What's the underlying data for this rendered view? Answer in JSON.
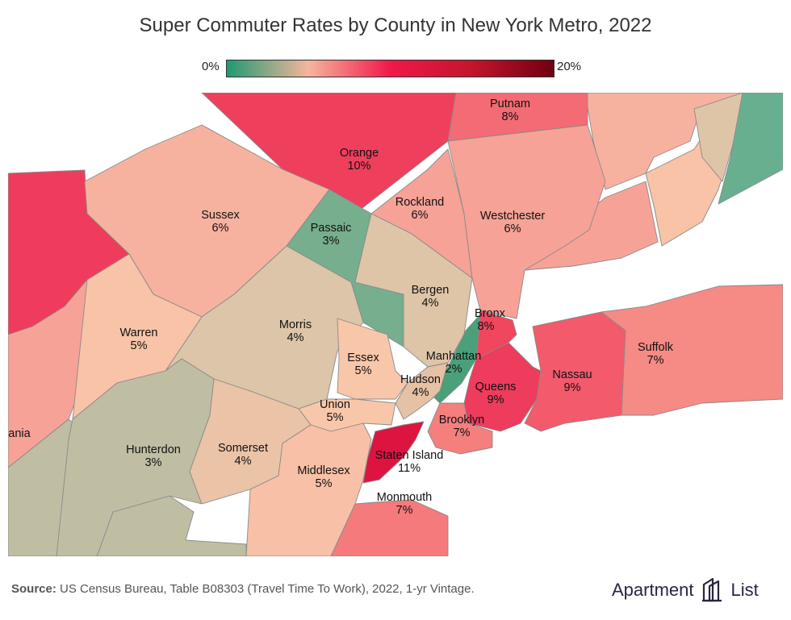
{
  "title": "Super Commuter Rates by County in New York Metro, 2022",
  "legend": {
    "min_label": "0%",
    "max_label": "20%",
    "colors": [
      "#1f9a70",
      "#f5b59c",
      "#f0194a",
      "#c3152c",
      "#6f0012"
    ]
  },
  "counties": [
    {
      "id": "orange",
      "name": "Orange",
      "pct": "10%",
      "color": "#ee3f5c"
    },
    {
      "id": "putnam",
      "name": "Putnam",
      "pct": "8%",
      "color": "#f36b74"
    },
    {
      "id": "rockland",
      "name": "Rockland",
      "pct": "6%",
      "color": "#f7a297"
    },
    {
      "id": "westchester",
      "name": "Westchester",
      "pct": "6%",
      "color": "#f7a297"
    },
    {
      "id": "sussex",
      "name": "Sussex",
      "pct": "6%",
      "color": "#f7b29f"
    },
    {
      "id": "passaic",
      "name": "Passaic",
      "pct": "3%",
      "color": "#76ae8e"
    },
    {
      "id": "bergen",
      "name": "Bergen",
      "pct": "4%",
      "color": "#dec5a8"
    },
    {
      "id": "morris",
      "name": "Morris",
      "pct": "4%",
      "color": "#dcc5a8"
    },
    {
      "id": "warren",
      "name": "Warren",
      "pct": "5%",
      "color": "#f8c3a6"
    },
    {
      "id": "essex",
      "name": "Essex",
      "pct": "5%",
      "color": "#f8c6a9"
    },
    {
      "id": "bronx",
      "name": "Bronx",
      "pct": "8%",
      "color": "#f0465e"
    },
    {
      "id": "manhattan",
      "name": "Manhattan",
      "pct": "2%",
      "color": "#4aa078"
    },
    {
      "id": "hudson",
      "name": "Hudson",
      "pct": "4%",
      "color": "#e5c1a5"
    },
    {
      "id": "queens",
      "name": "Queens",
      "pct": "9%",
      "color": "#ee3c5c"
    },
    {
      "id": "nassau",
      "name": "Nassau",
      "pct": "9%",
      "color": "#f35a6c"
    },
    {
      "id": "suffolk",
      "name": "Suffolk",
      "pct": "7%",
      "color": "#f68a84"
    },
    {
      "id": "union",
      "name": "Union",
      "pct": "5%",
      "color": "#f8c7a9"
    },
    {
      "id": "brooklyn",
      "name": "Brooklyn",
      "pct": "7%",
      "color": "#f47f7d"
    },
    {
      "id": "hunterdon",
      "name": "Hunterdon",
      "pct": "3%",
      "color": "#bfbea2"
    },
    {
      "id": "somerset",
      "name": "Somerset",
      "pct": "4%",
      "color": "#ebc3a7"
    },
    {
      "id": "staten_island",
      "name": "Staten Island",
      "pct": "11%",
      "color": "#dd1440"
    },
    {
      "id": "middlesex",
      "name": "Middlesex",
      "pct": "5%",
      "color": "#f8c0a6"
    },
    {
      "id": "monmouth",
      "name": "Monmouth",
      "pct": "7%",
      "color": "#f47a7c"
    }
  ],
  "partial_labels": [
    {
      "id": "pennsylvania",
      "text": "ania"
    }
  ],
  "footer": {
    "source_label": "Source:",
    "source_text": " US Census Bureau, Table B08303 (Travel Time To Work), 2022, 1-yr Vintage."
  },
  "brand": {
    "left": "Apartment",
    "right": "List"
  }
}
